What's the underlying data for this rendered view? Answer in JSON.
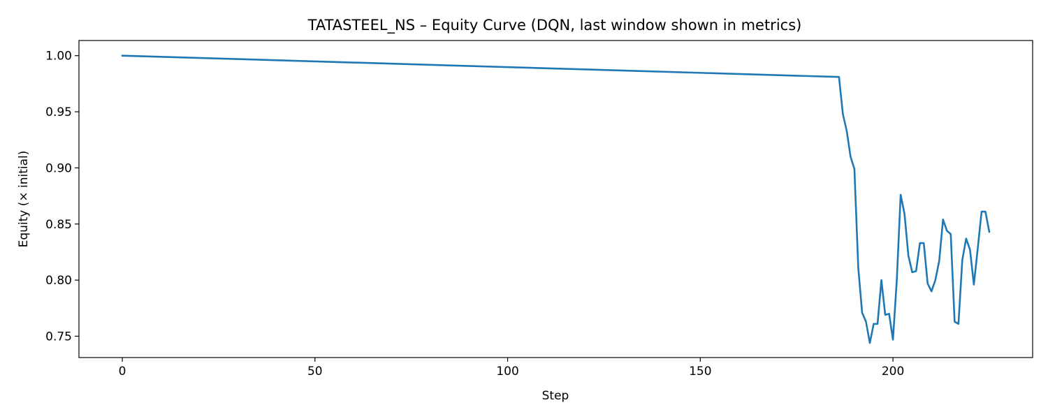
{
  "chart_data": {
    "type": "line",
    "title": "TATASTEEL_NS – Equity Curve (DQN, last window shown in metrics)",
    "xlabel": "Step",
    "ylabel": "Equity (× initial)",
    "xlim": [
      -11.25,
      236.25
    ],
    "ylim": [
      0.731,
      1.0135
    ],
    "xticks": [
      0,
      50,
      100,
      150,
      200
    ],
    "yticks": [
      0.75,
      0.8,
      0.85,
      0.9,
      0.95,
      1.0
    ],
    "ytick_labels": [
      "0.75",
      "0.80",
      "0.85",
      "0.90",
      "0.95",
      "1.00"
    ],
    "grid": false,
    "series": [
      {
        "color": "#1f77b4",
        "x": [
          0,
          186,
          187,
          188,
          189,
          190,
          191,
          192,
          193,
          194,
          195,
          196,
          197,
          198,
          199,
          200,
          201,
          202,
          203,
          204,
          205,
          206,
          207,
          208,
          209,
          210,
          211,
          212,
          213,
          214,
          215,
          216,
          217,
          218,
          219,
          220,
          221,
          222,
          223,
          224,
          225
        ],
        "y": [
          1.0,
          0.981,
          0.948,
          0.933,
          0.91,
          0.899,
          0.811,
          0.771,
          0.763,
          0.744,
          0.761,
          0.761,
          0.8,
          0.769,
          0.77,
          0.747,
          0.8,
          0.876,
          0.859,
          0.822,
          0.807,
          0.808,
          0.833,
          0.833,
          0.797,
          0.79,
          0.8,
          0.817,
          0.854,
          0.844,
          0.841,
          0.763,
          0.761,
          0.818,
          0.837,
          0.827,
          0.796,
          0.828,
          0.861,
          0.861,
          0.843
        ]
      }
    ]
  }
}
